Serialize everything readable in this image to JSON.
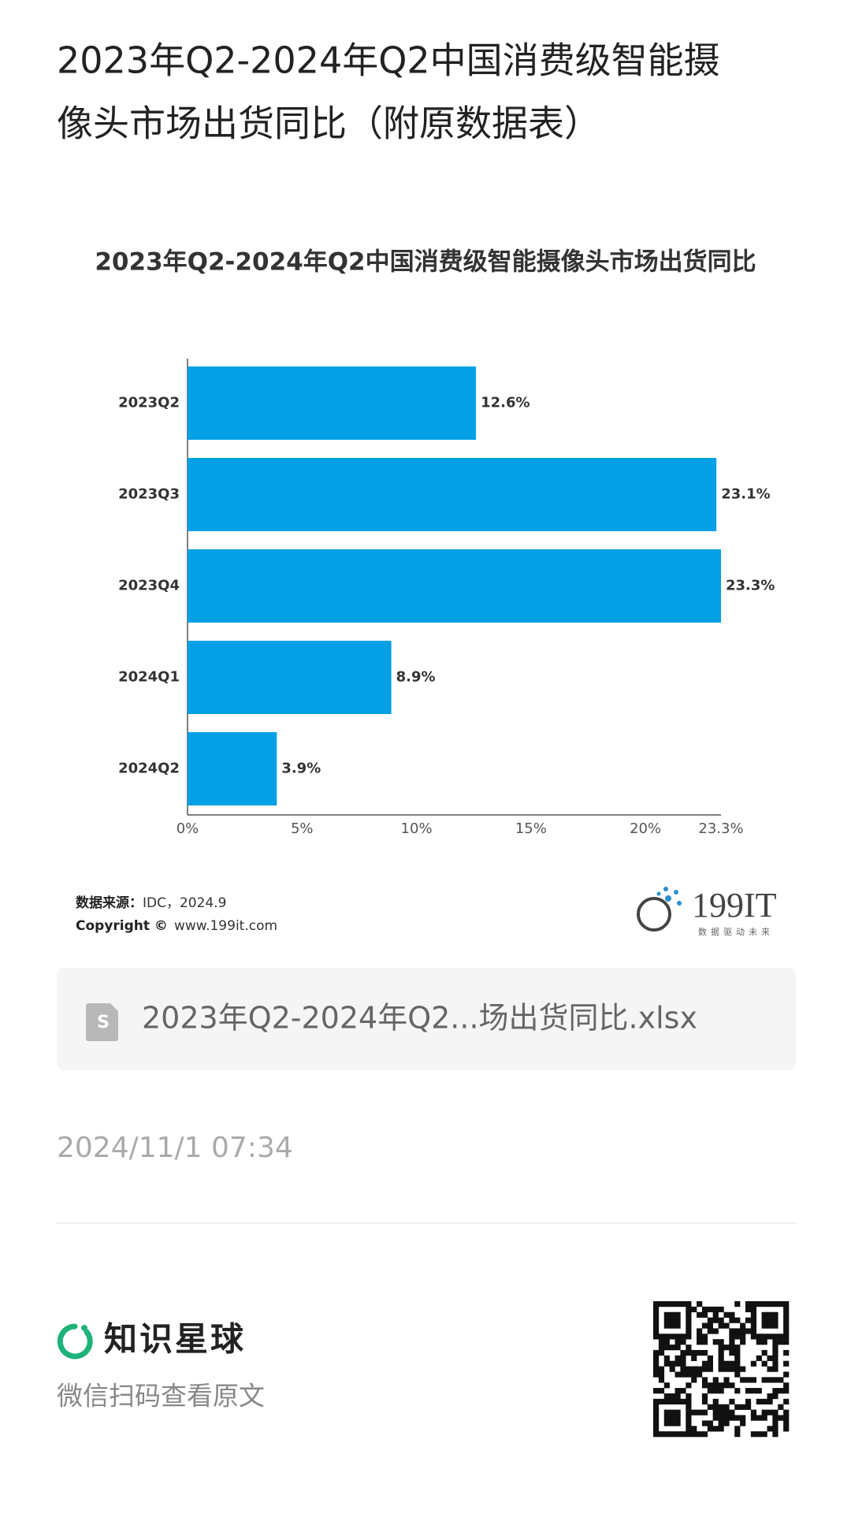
{
  "header": {
    "title_line1": "2023年Q2-2024年Q2中国消费级智能摄",
    "title_line2": "像头市场出货同比（附原数据表）"
  },
  "chart_data": {
    "type": "hbar",
    "title": "2023年Q2-2024年Q2中国消费级智能摄像头市场出货同比",
    "categories": [
      "2023Q2",
      "2023Q3",
      "2023Q4",
      "2024Q1",
      "2024Q2"
    ],
    "values": [
      12.6,
      23.1,
      23.3,
      8.9,
      3.9
    ],
    "value_labels": [
      "12.6%",
      "23.1%",
      "23.3%",
      "8.9%",
      "3.9%"
    ],
    "color": "#03a0e6",
    "xlim": [
      0,
      23.3
    ],
    "xticks": [
      {
        "value": 0,
        "label": "0%"
      },
      {
        "value": 5,
        "label": "5%"
      },
      {
        "value": 10,
        "label": "10%"
      },
      {
        "value": 15,
        "label": "15%"
      },
      {
        "value": 20,
        "label": "20%"
      },
      {
        "value": 23.3,
        "label": "23.3%"
      }
    ],
    "grid": false
  },
  "footnote": {
    "source_label": "数据来源：",
    "source": "IDC，2024.9",
    "copyright_label": "Copyright ©",
    "website": "www.199it.com"
  },
  "logo": {
    "name": "199IT",
    "slogan": "数据驱动未来"
  },
  "attachment": {
    "filename": "2023年Q2-2024年Q2...场出货同比.xlsx"
  },
  "timestamp": "2024/11/1 07:34",
  "footer": {
    "brand": "知识星球",
    "hint": "微信扫码查看原文"
  }
}
